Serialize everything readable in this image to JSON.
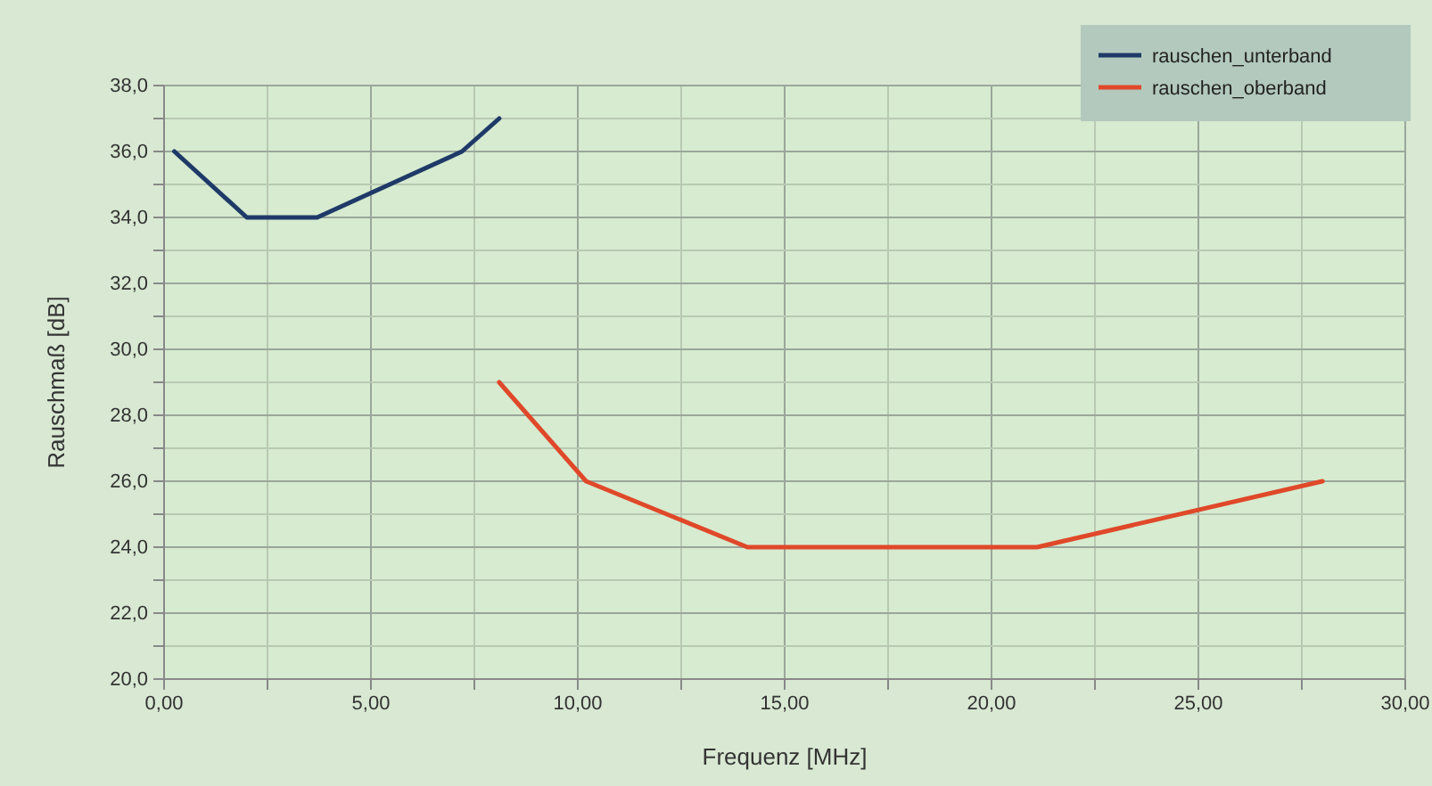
{
  "chart_data": {
    "type": "line",
    "xlabel": "Frequenz [MHz]",
    "ylabel": "Rauschmaß [dB]",
    "xlim": [
      0,
      30
    ],
    "ylim": [
      20,
      38
    ],
    "xticks": [
      {
        "value": 0,
        "label": "0,00"
      },
      {
        "value": 2.5,
        "label": null
      },
      {
        "value": 5,
        "label": "5,00"
      },
      {
        "value": 7.5,
        "label": null
      },
      {
        "value": 10,
        "label": "10,00"
      },
      {
        "value": 12.5,
        "label": null
      },
      {
        "value": 15,
        "label": "15,00"
      },
      {
        "value": 17.5,
        "label": null
      },
      {
        "value": 20,
        "label": "20,00"
      },
      {
        "value": 22.5,
        "label": null
      },
      {
        "value": 25,
        "label": "25,00"
      },
      {
        "value": 27.5,
        "label": null
      },
      {
        "value": 30,
        "label": "30,00"
      }
    ],
    "yticks": [
      {
        "value": 20,
        "label": "20,0"
      },
      {
        "value": 21,
        "label": null
      },
      {
        "value": 22,
        "label": "22,0"
      },
      {
        "value": 23,
        "label": null
      },
      {
        "value": 24,
        "label": "24,0"
      },
      {
        "value": 25,
        "label": null
      },
      {
        "value": 26,
        "label": "26,0"
      },
      {
        "value": 27,
        "label": null
      },
      {
        "value": 28,
        "label": "28,0"
      },
      {
        "value": 29,
        "label": null
      },
      {
        "value": 30,
        "label": "30,0"
      },
      {
        "value": 31,
        "label": null
      },
      {
        "value": 32,
        "label": "32,0"
      },
      {
        "value": 33,
        "label": null
      },
      {
        "value": 34,
        "label": "34,0"
      },
      {
        "value": 35,
        "label": null
      },
      {
        "value": 36,
        "label": "36,0"
      },
      {
        "value": 37,
        "label": null
      },
      {
        "value": 38,
        "label": "38,0"
      }
    ],
    "grid": true,
    "legend": "top right",
    "marker": "none",
    "line_style": "solid",
    "series": [
      {
        "name": "rauschen_unterband",
        "color": "#1f3a68",
        "x": [
          0.25,
          2,
          3.7,
          7.2,
          8.1
        ],
        "values": [
          36,
          34,
          34,
          36,
          37
        ]
      },
      {
        "name": "rauschen_oberband",
        "color": "#e0482a",
        "x": [
          8.1,
          10.2,
          14.1,
          21.1,
          28
        ],
        "values": [
          29,
          26,
          24,
          24,
          26
        ]
      }
    ]
  }
}
